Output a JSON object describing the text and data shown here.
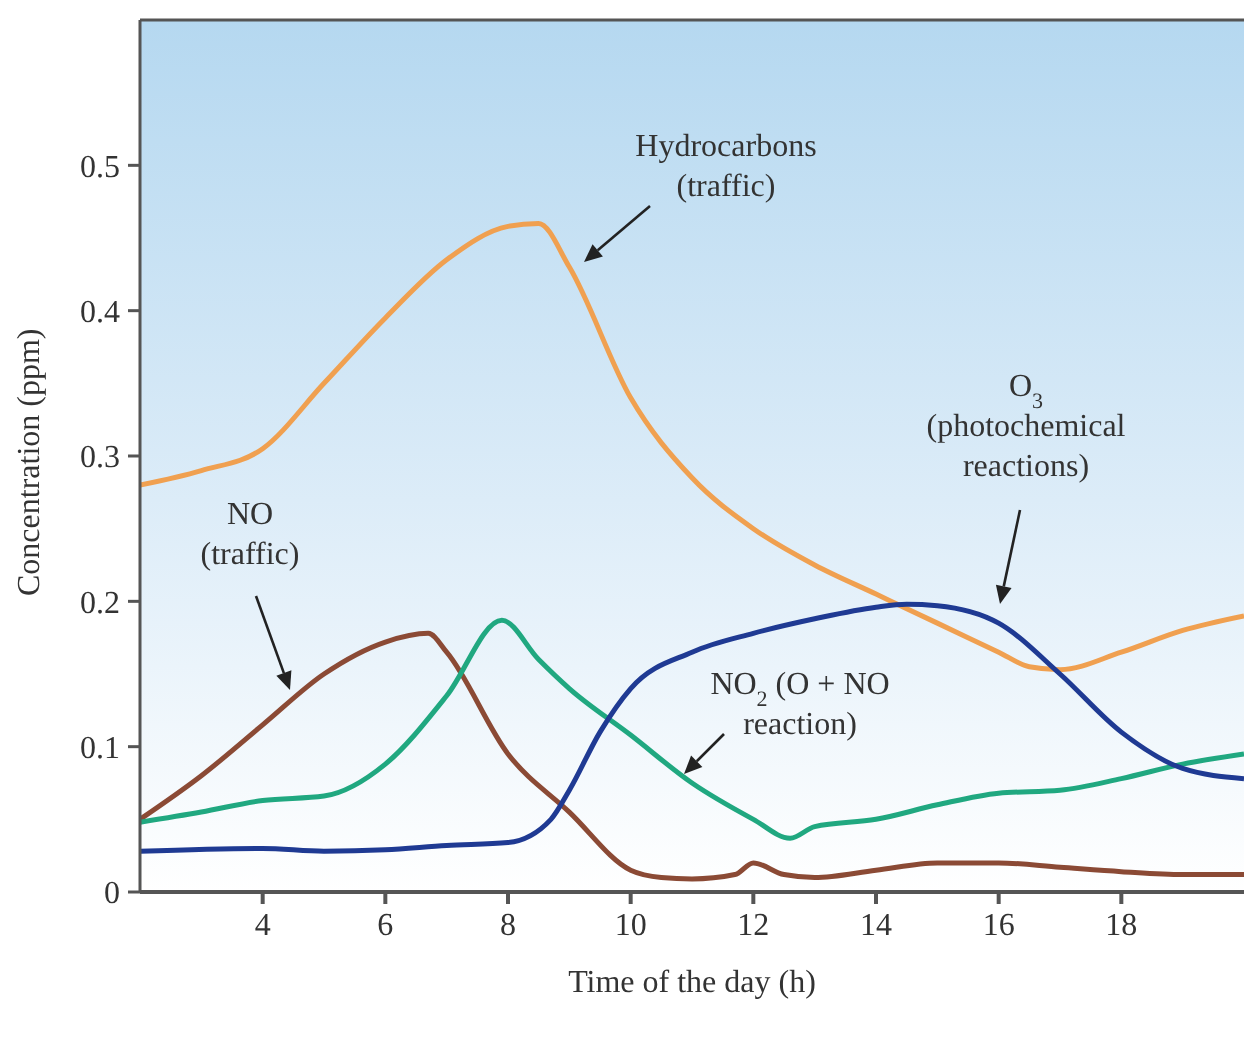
{
  "chart_data": {
    "type": "line",
    "xlabel": "Time of the day (h)",
    "ylabel": "Concentration (ppm)",
    "xlim": [
      2,
      20
    ],
    "xticks": [
      4,
      6,
      8,
      10,
      12,
      14,
      16,
      18
    ],
    "ylim": [
      0,
      0.6
    ],
    "yticks": [
      0,
      0.1,
      0.2,
      0.3,
      0.4,
      0.5
    ],
    "marker": "none",
    "line_style": "solid",
    "series": [
      {
        "color": "#f0a050",
        "x": [
          2,
          3,
          4,
          5,
          6,
          7,
          8,
          8.5,
          9,
          10,
          11,
          12,
          13,
          14,
          15,
          16,
          16.5,
          17,
          18,
          19,
          20
        ],
        "values": [
          0.28,
          0.29,
          0.305,
          0.35,
          0.395,
          0.435,
          0.458,
          0.46,
          0.43,
          0.34,
          0.285,
          0.25,
          0.225,
          0.205,
          0.185,
          0.165,
          0.155,
          0.153,
          0.165,
          0.18,
          0.19
        ]
      },
      {
        "color": "#8b4a35",
        "x": [
          2,
          3,
          4,
          5,
          6,
          6.7,
          7,
          8,
          9,
          10,
          10.5,
          11,
          11.7,
          12,
          12.5,
          13,
          14,
          15,
          16,
          17,
          18,
          19,
          20
        ],
        "values": [
          0.05,
          0.08,
          0.115,
          0.15,
          0.172,
          0.178,
          0.165,
          0.095,
          0.055,
          0.015,
          0.01,
          0.009,
          0.012,
          0.02,
          0.012,
          0.01,
          0.015,
          0.02,
          0.02,
          0.017,
          0.014,
          0.012,
          0.012
        ]
      },
      {
        "color": "#20a880",
        "x": [
          2,
          3,
          4,
          5,
          6,
          7,
          7.9,
          8.5,
          9,
          10,
          11,
          12,
          12.6,
          13,
          14,
          15,
          16,
          17,
          18,
          19,
          20
        ],
        "values": [
          0.048,
          0.055,
          0.063,
          0.066,
          0.088,
          0.135,
          0.187,
          0.16,
          0.14,
          0.108,
          0.075,
          0.05,
          0.037,
          0.045,
          0.05,
          0.06,
          0.068,
          0.07,
          0.078,
          0.088,
          0.095
        ]
      },
      {
        "color": "#1f3a93",
        "x": [
          2,
          4,
          5,
          6,
          7,
          8,
          8.7,
          9,
          9.5,
          10,
          11,
          12,
          13,
          14,
          14.5,
          15,
          16,
          17,
          18,
          19,
          20
        ],
        "values": [
          0.028,
          0.03,
          0.028,
          0.029,
          0.032,
          0.034,
          0.05,
          0.07,
          0.11,
          0.14,
          0.165,
          0.178,
          0.188,
          0.196,
          0.198,
          0.197,
          0.185,
          0.15,
          0.11,
          0.085,
          0.078
        ]
      }
    ],
    "annotations": [
      "Hydrocarbons (traffic)",
      "NO (traffic)",
      "O$_{3}$ (photochemical reactions)",
      "NO$_{2}$ (O + NO reaction)"
    ]
  }
}
